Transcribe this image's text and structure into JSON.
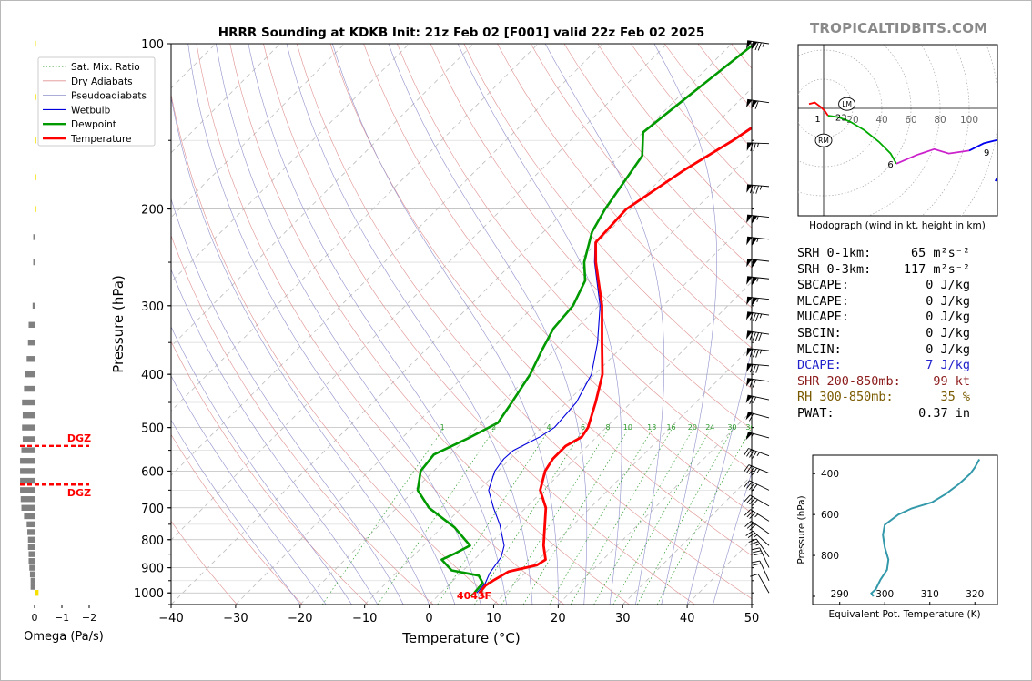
{
  "brand": "TROPICALTIDBITS.COM",
  "chart_data": [
    {
      "name": "skewt",
      "type": "line",
      "title": "HRRR Sounding at KDKB Init: 21z Feb 02 [F001] valid 22z Feb 02 2025",
      "xlabel": "Temperature (°C)",
      "ylabel": "Pressure (hPa)",
      "xlim": [
        -40,
        50
      ],
      "ylim": [
        1050,
        100
      ],
      "y_scale": "log",
      "x_ticks": [
        -40,
        -30,
        -20,
        -10,
        0,
        10,
        20,
        30,
        40,
        50
      ],
      "y_ticks": [
        100,
        200,
        300,
        400,
        500,
        600,
        700,
        800,
        900,
        1000
      ],
      "legend": {
        "placement": "top-left",
        "entries": [
          "Sat. Mix. Ratio",
          "Dry Adiabats",
          "Pseudoadiabats",
          "Wetbulb",
          "Dewpoint",
          "Temperature"
        ]
      },
      "colors": {
        "temperature": "#ff0000",
        "dewpoint": "#009900",
        "wetbulb": "#0000dd",
        "dry": "#e09090",
        "moist": "#9090cc",
        "mixing": "#2e9c2e",
        "isotherm": "#999999"
      },
      "mixing_ratio_labels": [
        "1",
        "2",
        "4",
        "6",
        "8",
        "10",
        "13",
        "16",
        "20",
        "24",
        "30",
        "36"
      ],
      "surface_label": "4043F",
      "series": [
        {
          "name": "Temperature",
          "points": [
            [
              1000,
              6
            ],
            [
              970,
              5.8
            ],
            [
              950,
              6.2
            ],
            [
              915,
              7.2
            ],
            [
              890,
              10.6
            ],
            [
              870,
              11.1
            ],
            [
              820,
              8.6
            ],
            [
              750,
              5.5
            ],
            [
              700,
              3.1
            ],
            [
              650,
              -0.5
            ],
            [
              600,
              -2.7
            ],
            [
              570,
              -3.4
            ],
            [
              540,
              -3.4
            ],
            [
              520,
              -2.3
            ],
            [
              500,
              -2.8
            ],
            [
              450,
              -5.5
            ],
            [
              400,
              -8.8
            ],
            [
              350,
              -13.8
            ],
            [
              300,
              -19.5
            ],
            [
              250,
              -27.2
            ],
            [
              230,
              -30.3
            ],
            [
              200,
              -30.7
            ],
            [
              170,
              -27.8
            ],
            [
              150,
              -24.8
            ],
            [
              120,
              -20.8
            ],
            [
              100,
              -17.5
            ]
          ]
        },
        {
          "name": "Dewpoint",
          "points": [
            [
              1000,
              5.2
            ],
            [
              960,
              5
            ],
            [
              930,
              3.2
            ],
            [
              910,
              -1.8
            ],
            [
              870,
              -5
            ],
            [
              850,
              -4
            ],
            [
              820,
              -2.8
            ],
            [
              760,
              -8
            ],
            [
              700,
              -15
            ],
            [
              650,
              -19.5
            ],
            [
              600,
              -22
            ],
            [
              560,
              -22.5
            ],
            [
              520,
              -19.5
            ],
            [
              490,
              -17.5
            ],
            [
              450,
              -18.5
            ],
            [
              400,
              -20
            ],
            [
              360,
              -22
            ],
            [
              330,
              -23.5
            ],
            [
              300,
              -24
            ],
            [
              270,
              -26
            ],
            [
              250,
              -29
            ],
            [
              220,
              -32.5
            ],
            [
              200,
              -34
            ],
            [
              160,
              -36.5
            ],
            [
              145,
              -40
            ],
            [
              130,
              -39
            ],
            [
              100,
              -36.5
            ]
          ]
        },
        {
          "name": "Wetbulb",
          "points": [
            [
              1000,
              5.6
            ],
            [
              960,
              5.4
            ],
            [
              920,
              4.5
            ],
            [
              860,
              3.8
            ],
            [
              820,
              2.5
            ],
            [
              750,
              -1.5
            ],
            [
              700,
              -5
            ],
            [
              650,
              -8.5
            ],
            [
              600,
              -10.5
            ],
            [
              570,
              -11
            ],
            [
              550,
              -10.8
            ],
            [
              520,
              -8.8
            ],
            [
              500,
              -8
            ],
            [
              450,
              -8.5
            ],
            [
              400,
              -10.5
            ],
            [
              350,
              -14.5
            ],
            [
              300,
              -19.8
            ],
            [
              250,
              -27.4
            ],
            [
              230,
              -30.4
            ],
            [
              200,
              -30.8
            ],
            [
              170,
              -27.9
            ],
            [
              150,
              -25
            ],
            [
              120,
              -21
            ],
            [
              100,
              -17.8
            ]
          ]
        }
      ]
    },
    {
      "name": "omega",
      "type": "bar",
      "xlabel": "Omega (Pa/s)",
      "x_ticks": [
        "0",
        "−1",
        "−2"
      ],
      "dgz_label": "DGZ",
      "dgz_levels": [
        540,
        635
      ],
      "values_pa_s": [
        [
          1000,
          0.3
        ],
        [
          975,
          -0.3
        ],
        [
          950,
          -0.3
        ],
        [
          925,
          -0.35
        ],
        [
          900,
          -0.4
        ],
        [
          875,
          -0.45
        ],
        [
          850,
          -0.45
        ],
        [
          825,
          -0.5
        ],
        [
          800,
          -0.5
        ],
        [
          775,
          -0.55
        ],
        [
          750,
          -0.6
        ],
        [
          725,
          -0.8
        ],
        [
          700,
          -1.0
        ],
        [
          675,
          -1.05
        ],
        [
          650,
          -1.1
        ],
        [
          625,
          -1.1
        ],
        [
          600,
          -1.1
        ],
        [
          575,
          -1.1
        ],
        [
          550,
          -1.0
        ],
        [
          525,
          -0.9
        ],
        [
          500,
          -0.95
        ],
        [
          475,
          -0.9
        ],
        [
          450,
          -0.95
        ],
        [
          425,
          -0.8
        ],
        [
          400,
          -0.7
        ],
        [
          375,
          -0.6
        ],
        [
          350,
          -0.5
        ],
        [
          325,
          -0.45
        ],
        [
          300,
          -0.15
        ],
        [
          250,
          -0.1
        ],
        [
          225,
          -0.1
        ],
        [
          200,
          0.12
        ],
        [
          175,
          0.12
        ],
        [
          150,
          0.12
        ],
        [
          125,
          0.12
        ],
        [
          100,
          0.1
        ]
      ]
    },
    {
      "name": "hodograph",
      "type": "line",
      "title": "Hodograph (wind in kt, height in km)",
      "ring_labels": [
        "20",
        "40",
        "60",
        "80",
        "100"
      ],
      "height_labels": [
        {
          "text": "1",
          "u": -4,
          "v": -7
        },
        {
          "text": "23",
          "u": 12,
          "v": -6
        },
        {
          "text": "6",
          "u": 46,
          "v": -38
        },
        {
          "text": "9",
          "u": 112,
          "v": -30
        }
      ],
      "storm_motion": [
        {
          "label": "LM",
          "u": 16,
          "v": 3
        },
        {
          "label": "RM",
          "u": 0,
          "v": -22
        }
      ],
      "segments": [
        {
          "color": "#ff0000",
          "points": [
            [
              -10,
              3
            ],
            [
              -6,
              4
            ],
            [
              -2,
              1
            ],
            [
              1,
              -2
            ],
            [
              3,
              -5
            ]
          ]
        },
        {
          "color": "#00aa00",
          "points": [
            [
              3,
              -5
            ],
            [
              10,
              -6
            ],
            [
              18,
              -9
            ],
            [
              28,
              -15
            ],
            [
              38,
              -23
            ],
            [
              46,
              -31
            ],
            [
              50,
              -38
            ]
          ]
        },
        {
          "color": "#cc22cc",
          "points": [
            [
              50,
              -38
            ],
            [
              64,
              -32
            ],
            [
              76,
              -28
            ],
            [
              86,
              -31
            ],
            [
              100,
              -29
            ]
          ]
        },
        {
          "color": "#0000ee",
          "points": [
            [
              100,
              -29
            ],
            [
              110,
              -24
            ],
            [
              122,
              -21
            ],
            [
              130,
              -18
            ],
            [
              124,
              -38
            ],
            [
              118,
              -50
            ]
          ]
        }
      ]
    },
    {
      "name": "theta-e",
      "type": "line",
      "xlabel": "Equivalent Pot. Temperature (K)",
      "ylabel": "Pressure (hPa)",
      "x_ticks": [
        290,
        300,
        310,
        320
      ],
      "y_ticks": [
        400,
        600,
        800
      ],
      "color": "#3399aa",
      "points": [
        [
          1000,
          297.5
        ],
        [
          985,
          297
        ],
        [
          965,
          298
        ],
        [
          920,
          299
        ],
        [
          870,
          300.5
        ],
        [
          820,
          300.8
        ],
        [
          760,
          300
        ],
        [
          700,
          299.6
        ],
        [
          650,
          300
        ],
        [
          600,
          303
        ],
        [
          570,
          306
        ],
        [
          540,
          310.5
        ],
        [
          500,
          313.5
        ],
        [
          450,
          316.5
        ],
        [
          400,
          319
        ],
        [
          370,
          320
        ],
        [
          330,
          321
        ]
      ]
    }
  ],
  "stats": [
    {
      "label": "SRH 0-1km:",
      "value": "65 m²s⁻²",
      "color": "#000000"
    },
    {
      "label": "SRH 0-3km:",
      "value": "117 m²s⁻²",
      "color": "#000000"
    },
    {
      "label": "SBCAPE:",
      "value": "0 J/kg",
      "color": "#000000"
    },
    {
      "label": "MLCAPE:",
      "value": "0 J/kg",
      "color": "#000000"
    },
    {
      "label": "MUCAPE:",
      "value": "0 J/kg",
      "color": "#000000"
    },
    {
      "label": "SBCIN:",
      "value": "0 J/kg",
      "color": "#000000"
    },
    {
      "label": "MLCIN:",
      "value": "0 J/kg",
      "color": "#000000"
    },
    {
      "label": "DCAPE:",
      "value": "7 J/kg",
      "color": "#2222cc"
    },
    {
      "label": "SHR 200-850mb:",
      "value": "99 kt",
      "color": "#8b1a1a"
    },
    {
      "label": "RH 300-850mb:",
      "value": "35 %",
      "color": "#7a5a00"
    },
    {
      "label": "PWAT:",
      "value": "0.37 in",
      "color": "#000000"
    }
  ],
  "barbs": [
    {
      "p": 100,
      "spd": 125,
      "dir": 262
    },
    {
      "p": 128,
      "spd": 110,
      "dir": 262
    },
    {
      "p": 152,
      "spd": 75,
      "dir": 268
    },
    {
      "p": 182,
      "spd": 85,
      "dir": 265
    },
    {
      "p": 207,
      "spd": 105,
      "dir": 264
    },
    {
      "p": 227,
      "spd": 105,
      "dir": 264
    },
    {
      "p": 249,
      "spd": 100,
      "dir": 264
    },
    {
      "p": 268,
      "spd": 105,
      "dir": 264
    },
    {
      "p": 292,
      "spd": 105,
      "dir": 264
    },
    {
      "p": 312,
      "spd": 85,
      "dir": 262
    },
    {
      "p": 338,
      "spd": 90,
      "dir": 262
    },
    {
      "p": 362,
      "spd": 85,
      "dir": 264
    },
    {
      "p": 386,
      "spd": 80,
      "dir": 265
    },
    {
      "p": 412,
      "spd": 70,
      "dir": 262
    },
    {
      "p": 445,
      "spd": 65,
      "dir": 258
    },
    {
      "p": 480,
      "spd": 60,
      "dir": 255
    },
    {
      "p": 522,
      "spd": 55,
      "dir": 255
    },
    {
      "p": 563,
      "spd": 45,
      "dir": 250
    },
    {
      "p": 605,
      "spd": 45,
      "dir": 248
    },
    {
      "p": 650,
      "spd": 40,
      "dir": 244
    },
    {
      "p": 695,
      "spd": 40,
      "dir": 240
    },
    {
      "p": 740,
      "spd": 35,
      "dir": 238
    },
    {
      "p": 780,
      "spd": 30,
      "dir": 235
    },
    {
      "p": 820,
      "spd": 25,
      "dir": 228
    },
    {
      "p": 860,
      "spd": 25,
      "dir": 215
    },
    {
      "p": 900,
      "spd": 30,
      "dir": 205
    },
    {
      "p": 950,
      "spd": 20,
      "dir": 205
    },
    {
      "p": 1000,
      "spd": 10,
      "dir": 210
    }
  ]
}
